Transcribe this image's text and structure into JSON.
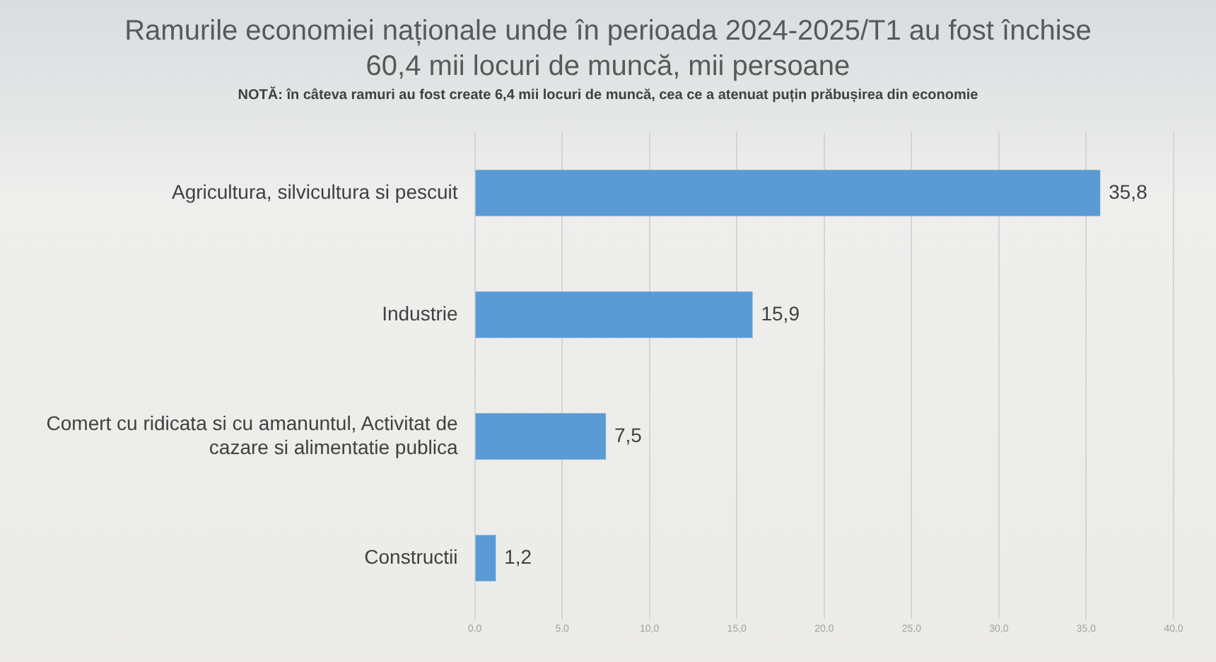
{
  "chart_data": {
    "type": "bar",
    "orientation": "horizontal",
    "title": "Ramurile economiei naționale unde în perioada 2024-2025/T1 au fost închise 60,4 mii locuri de muncă, mii persoane",
    "subtitle": "NOTĂ: în câteva ramuri au fost create 6,4 mii locuri de muncă, cea ce a atenuat puțin prăbușirea din economie",
    "categories": [
      "Agricultura, silvicultura si pescuit",
      "Industrie",
      "Comert cu ridicata si cu amanuntul, Activitat de cazare si alimentatie publica",
      "Constructii"
    ],
    "values": [
      35.8,
      15.9,
      7.5,
      1.2
    ],
    "color": "#5b9bd5",
    "value_labels": [
      "35,8",
      "15,9",
      "7,5",
      "1,2"
    ],
    "xlim": [
      0,
      40
    ],
    "xticks": [
      {
        "value": 0,
        "label": "0,0"
      },
      {
        "value": 5,
        "label": "5,0"
      },
      {
        "value": 10,
        "label": "10,0"
      },
      {
        "value": 15,
        "label": "15,0"
      },
      {
        "value": 20,
        "label": "20,0"
      },
      {
        "value": 25,
        "label": "25,0"
      },
      {
        "value": 30,
        "label": "30,0"
      },
      {
        "value": 35,
        "label": "35,0"
      },
      {
        "value": 40,
        "label": "40,0"
      }
    ],
    "grid": "x",
    "legend": false
  }
}
